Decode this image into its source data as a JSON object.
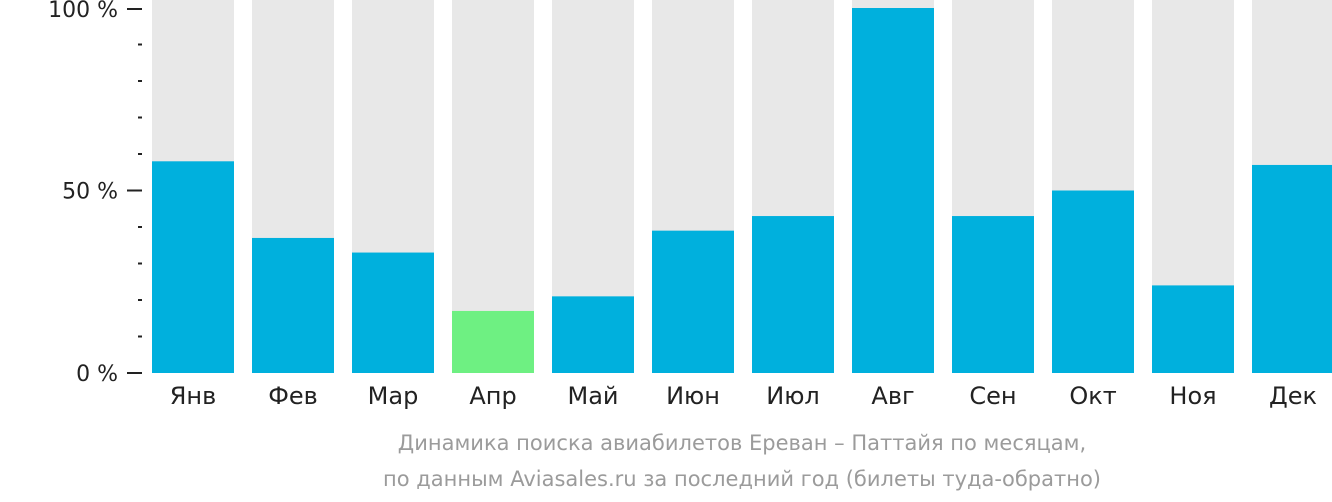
{
  "chart_data": {
    "type": "bar",
    "categories": [
      "Янв",
      "Фев",
      "Мар",
      "Апр",
      "Май",
      "Июн",
      "Июл",
      "Авг",
      "Сен",
      "Окт",
      "Ноя",
      "Дек"
    ],
    "values": [
      58,
      37,
      33,
      17,
      21,
      39,
      43,
      100,
      43,
      50,
      24,
      57
    ],
    "ylim": [
      0,
      100
    ],
    "yticks": [
      {
        "value": 0,
        "label": "0 %"
      },
      {
        "value": 50,
        "label": "50 %"
      },
      {
        "value": 100,
        "label": "100 %"
      }
    ],
    "minor_tick_step": 10,
    "highlight_index": 3,
    "colors": {
      "bar": "#00b0dd",
      "highlight": "#6ef082",
      "background_bar": "#e8e8e8",
      "axis": "#222222"
    },
    "caption_lines": [
      "Динамика поиска авиабилетов Ереван – Паттайя по месяцам,",
      "по данным Aviasales.ru за последний год (билеты туда-обратно)"
    ]
  }
}
